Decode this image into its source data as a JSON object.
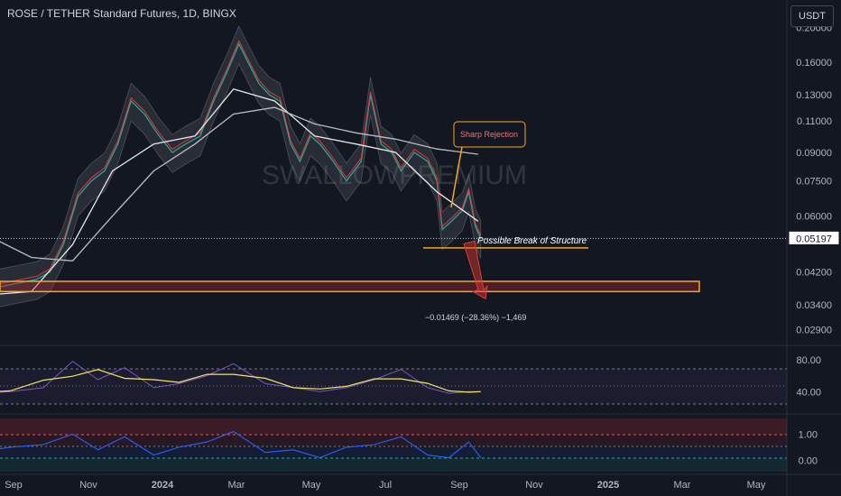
{
  "header": {
    "title": "ROSE / TETHER Standard Futures, 1D, BINGX",
    "currency": "USDT"
  },
  "watermark": "SWALLOWPREMIUM",
  "annotations": {
    "sharp_rejection": "Sharp Rejection",
    "break_of_structure": "Possible Break of Structure",
    "measure": "−0.01469 (−28.36%) −1,469"
  },
  "last_price": "0.05197",
  "colors": {
    "background": "#131722",
    "price_line": "#e0e0e0",
    "ma_red": "#e53935",
    "ma_green": "#4caf50",
    "ma_white": "#ffffff",
    "orange": "#f5a623",
    "rsi": "#7e57c2",
    "rsi_ma": "#f5e663",
    "osc": "#2962ff"
  },
  "chart_data": [
    {
      "type": "line",
      "name": "price",
      "scale": "log",
      "y_ticks": [
        "0.20000",
        "0.16000",
        "0.13000",
        "0.11000",
        "0.09000",
        "0.07500",
        "0.06000",
        "0.04200",
        "0.03400",
        "0.02900"
      ],
      "x_ticks": [
        "Sep",
        "Nov",
        "2024",
        "Mar",
        "May",
        "Jul",
        "Sep",
        "Nov",
        "2025",
        "Mar",
        "May"
      ],
      "ylim": [
        0.027,
        0.21
      ],
      "series": [
        {
          "x": [
            "2023-08-20",
            "2023-09-05",
            "2023-09-20",
            "2023-10-05",
            "2023-10-15",
            "2023-10-25",
            "2023-11-05",
            "2023-11-15",
            "2023-11-25",
            "2023-12-05",
            "2023-12-15",
            "2023-12-25",
            "2024-01-05",
            "2024-01-15",
            "2024-01-25",
            "2024-02-05",
            "2024-02-15",
            "2024-02-25",
            "2024-03-05",
            "2024-03-12",
            "2024-03-20",
            "2024-03-28",
            "2024-04-05",
            "2024-04-13",
            "2024-04-20",
            "2024-04-28",
            "2024-05-05",
            "2024-05-15",
            "2024-05-25",
            "2024-06-05",
            "2024-06-12",
            "2024-06-20",
            "2024-06-28",
            "2024-07-05",
            "2024-07-15",
            "2024-07-25",
            "2024-08-01",
            "2024-08-05",
            "2024-08-12",
            "2024-08-20",
            "2024-08-25",
            "2024-08-30",
            "2024-09-03"
          ],
          "y": [
            0.04,
            0.038,
            0.039,
            0.04,
            0.042,
            0.05,
            0.068,
            0.075,
            0.08,
            0.095,
            0.125,
            0.115,
            0.1,
            0.09,
            0.095,
            0.1,
            0.125,
            0.15,
            0.18,
            0.16,
            0.14,
            0.13,
            0.125,
            0.095,
            0.085,
            0.1,
            0.095,
            0.085,
            0.075,
            0.085,
            0.13,
            0.095,
            0.09,
            0.08,
            0.09,
            0.085,
            0.075,
            0.055,
            0.058,
            0.062,
            0.07,
            0.056,
            0.052
          ]
        }
      ],
      "moving_averages": [
        {
          "x": [
            "2023-08-20",
            "2023-10-01",
            "2023-11-01",
            "2023-12-01",
            "2024-01-01",
            "2024-02-01",
            "2024-03-01",
            "2024-04-01",
            "2024-05-01",
            "2024-06-01",
            "2024-07-01",
            "2024-08-01",
            "2024-09-01"
          ],
          "y": [
            0.036,
            0.037,
            0.05,
            0.08,
            0.095,
            0.1,
            0.135,
            0.125,
            0.1,
            0.095,
            0.09,
            0.07,
            0.058
          ]
        },
        {
          "x": [
            "2023-08-20",
            "2023-10-01",
            "2023-11-01",
            "2023-12-01",
            "2024-01-01",
            "2024-02-01",
            "2024-03-01",
            "2024-04-01",
            "2024-05-01",
            "2024-06-01",
            "2024-07-01",
            "2024-08-01",
            "2024-09-01"
          ],
          "y": [
            0.055,
            0.046,
            0.045,
            0.06,
            0.08,
            0.095,
            0.115,
            0.12,
            0.108,
            0.102,
            0.098,
            0.092,
            0.089
          ]
        }
      ],
      "levels": {
        "break_of_structure": 0.0515,
        "zone_top": 0.0395,
        "zone_bottom": 0.037,
        "last": 0.05197
      }
    },
    {
      "type": "line",
      "name": "rsi",
      "y_ticks": [
        "80.00",
        "40.00"
      ],
      "ylim": [
        20,
        90
      ],
      "series": [
        {
          "x": [
            "2023-08-20",
            "2023-09-15",
            "2023-10-10",
            "2023-11-01",
            "2023-11-20",
            "2023-12-10",
            "2024-01-01",
            "2024-01-20",
            "2024-02-10",
            "2024-03-01",
            "2024-03-25",
            "2024-04-15",
            "2024-05-05",
            "2024-05-25",
            "2024-06-15",
            "2024-07-05",
            "2024-07-25",
            "2024-08-10",
            "2024-08-25",
            "2024-09-03"
          ],
          "y": [
            38,
            40,
            45,
            78,
            55,
            70,
            45,
            50,
            60,
            75,
            50,
            45,
            40,
            45,
            55,
            68,
            45,
            38,
            40,
            40
          ]
        }
      ]
    },
    {
      "type": "line",
      "name": "oscillator",
      "y_ticks": [
        "1.00",
        "0.00"
      ],
      "ylim": [
        -0.4,
        1.6
      ],
      "series": [
        {
          "x": [
            "2023-08-20",
            "2023-09-15",
            "2023-10-10",
            "2023-11-01",
            "2023-11-20",
            "2023-12-10",
            "2024-01-01",
            "2024-01-20",
            "2024-02-10",
            "2024-03-01",
            "2024-03-25",
            "2024-04-15",
            "2024-05-05",
            "2024-05-25",
            "2024-06-15",
            "2024-07-05",
            "2024-07-25",
            "2024-08-10",
            "2024-08-25",
            "2024-09-03"
          ],
          "y": [
            0.3,
            0.5,
            0.6,
            1.0,
            0.4,
            0.9,
            0.2,
            0.5,
            0.7,
            1.1,
            0.3,
            0.4,
            0.1,
            0.5,
            0.6,
            0.9,
            0.2,
            0.1,
            0.7,
            0.1
          ]
        }
      ]
    }
  ]
}
